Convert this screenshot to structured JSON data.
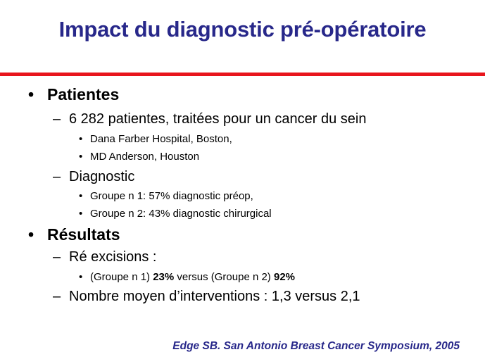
{
  "title": "Impact du diagnostic pré-opératoire",
  "colors": {
    "title": "#28288a",
    "rule": "#e8151c",
    "text": "#000000"
  },
  "bullets": {
    "level1": "•",
    "level2": "–",
    "level3": "•"
  },
  "sections": {
    "patientes": {
      "heading": "Patientes",
      "cohort": "6 282 patientes, traitées pour un cancer du sein",
      "site1": "Dana Farber Hospital, Boston,",
      "site2": " MD Anderson, Houston",
      "diagnostic": "Diagnostic",
      "group1": "Groupe n 1: 57% diagnostic préop,",
      "group2": "Groupe n 2: 43% diagnostic chirurgical"
    },
    "resultats": {
      "heading": "Résultats",
      "reexcisions": "Ré excisions :",
      "cmp_prefix": "(Groupe n 1) ",
      "cmp_value1": "23%",
      "cmp_middle": " versus (Groupe n 2) ",
      "cmp_value2": "92%",
      "interventions": "Nombre moyen d’interventions : 1,3 versus 2,1"
    }
  },
  "citation": "Edge SB. San Antonio Breast Cancer Symposium, 2005"
}
